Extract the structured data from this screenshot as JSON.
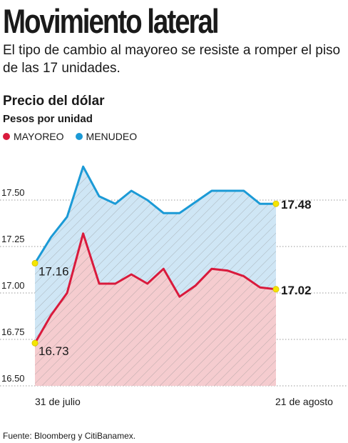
{
  "header": {
    "title": "Movimiento lateral",
    "subtitle": "El tipo de cambio al mayoreo se resiste a romper el piso de las 17 unidades."
  },
  "chart_header": {
    "title": "Precio del dólar",
    "units": "Pesos por unidad"
  },
  "legend": {
    "items": [
      {
        "label": "MAYOREO",
        "color": "#d91a3c"
      },
      {
        "label": "MENUDEO",
        "color": "#1b9ad6"
      }
    ]
  },
  "footer": {
    "source": "Fuente: Bloomberg y CitiBanamex."
  },
  "chart_data": {
    "type": "area",
    "x_start_label": "31 de julio",
    "x_end_label": "21 de agosto",
    "ylim": [
      16.5,
      17.5
    ],
    "yticks": [
      "17.50",
      "17.25",
      "17.00",
      "16.75",
      "16.50"
    ],
    "ytick_values": [
      17.5,
      17.25,
      17.0,
      16.75,
      16.5
    ],
    "series": [
      {
        "name": "MENUDEO",
        "color": "#1b9ad6",
        "fill": "#cfe6f5",
        "values": [
          17.16,
          17.3,
          17.41,
          17.68,
          17.52,
          17.48,
          17.55,
          17.5,
          17.43,
          17.43,
          17.49,
          17.55,
          17.55,
          17.55,
          17.48,
          17.48
        ]
      },
      {
        "name": "MAYOREO",
        "color": "#d91a3c",
        "fill": "#f5cccf",
        "values": [
          16.73,
          16.88,
          17.0,
          17.32,
          17.05,
          17.05,
          17.1,
          17.05,
          17.13,
          16.98,
          17.04,
          17.13,
          17.12,
          17.09,
          17.03,
          17.02
        ]
      }
    ],
    "annotations": [
      {
        "series": "MENUDEO",
        "position": "first",
        "text": "17.16"
      },
      {
        "series": "MENUDEO",
        "position": "last",
        "text": "17.48"
      },
      {
        "series": "MAYOREO",
        "position": "first",
        "text": "16.73"
      },
      {
        "series": "MAYOREO",
        "position": "last",
        "text": "17.02"
      }
    ],
    "grid": true
  }
}
